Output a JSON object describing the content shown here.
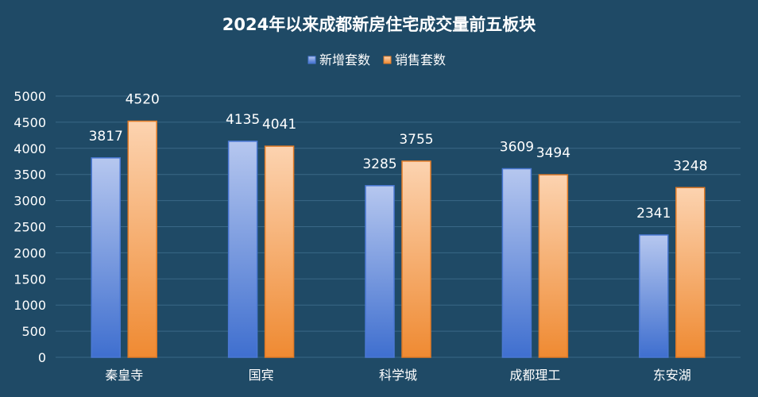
{
  "chart_data": {
    "type": "bar",
    "title": "2024年以来成都新房住宅成交量前五板块",
    "categories": [
      "秦皇寺",
      "国宾",
      "科学城",
      "成都理工",
      "东安湖"
    ],
    "series": [
      {
        "name": "新增套数",
        "values": [
          3817,
          4135,
          3285,
          3609,
          2341
        ],
        "color_top": "#b6c7ef",
        "color_bottom": "#3f6fcf",
        "stroke": "#4a78d4"
      },
      {
        "name": "销售套数",
        "values": [
          4520,
          4041,
          3755,
          3494,
          3248
        ],
        "color_top": "#fcd3b0",
        "color_bottom": "#ef8a32",
        "stroke": "#e07a26"
      }
    ],
    "ylim": [
      0,
      5000
    ],
    "yticks": [
      0,
      500,
      1000,
      1500,
      2000,
      2500,
      3000,
      3500,
      4000,
      4500,
      5000
    ],
    "xlabel": "",
    "ylabel": "",
    "grid": true,
    "legend_position": "top-center",
    "background": "#1f4a66"
  }
}
